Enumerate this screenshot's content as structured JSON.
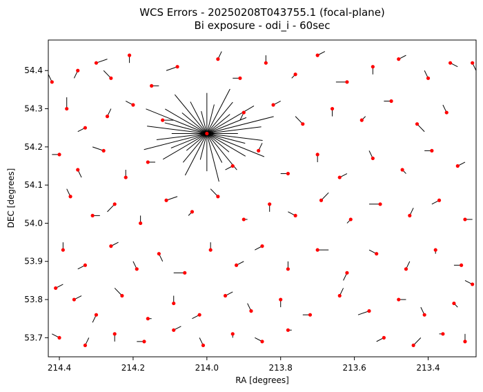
{
  "chart_data": {
    "type": "scatter",
    "title": "WCS Errors - 20250208T043755.1 (focal-plane)",
    "subtitle": "Bi exposure - odi_i - 60sec",
    "xlabel": "RA [degrees]",
    "ylabel": "DEC [degrees]",
    "xlim": [
      214.43,
      213.27
    ],
    "ylim": [
      53.65,
      54.48
    ],
    "x_inverted": true,
    "xticks": [
      "214.4",
      "214.2",
      "214.0",
      "213.8",
      "213.6",
      "213.4"
    ],
    "yticks": [
      "53.7",
      "53.8",
      "53.9",
      "54.0",
      "54.1",
      "54.2",
      "54.3",
      "54.4"
    ],
    "grid": false,
    "colors": {
      "marker": "#ff0000",
      "vector": "#000000"
    },
    "series": [
      {
        "marker": "dot",
        "cluster_center": [
          214.0,
          54.235
        ],
        "points": [
          [
            214.35,
            54.4,
            0.01,
            -0.02
          ],
          [
            214.3,
            54.42,
            -0.03,
            0.01
          ],
          [
            214.26,
            54.38,
            0.02,
            0.02
          ],
          [
            214.21,
            54.44,
            0.0,
            -0.02
          ],
          [
            214.15,
            54.36,
            -0.02,
            0.0
          ],
          [
            214.08,
            54.41,
            0.03,
            -0.01
          ],
          [
            213.97,
            54.43,
            -0.01,
            0.02
          ],
          [
            213.91,
            54.38,
            0.02,
            0.0
          ],
          [
            213.84,
            54.42,
            0.0,
            0.02
          ],
          [
            213.76,
            54.39,
            0.01,
            -0.01
          ],
          [
            213.7,
            54.44,
            -0.02,
            0.01
          ],
          [
            213.62,
            54.37,
            0.03,
            0.0
          ],
          [
            213.55,
            54.41,
            0.0,
            -0.02
          ],
          [
            213.48,
            54.43,
            -0.02,
            0.01
          ],
          [
            213.4,
            54.38,
            0.01,
            0.02
          ],
          [
            213.34,
            54.42,
            -0.02,
            -0.01
          ],
          [
            214.38,
            54.3,
            0.0,
            0.03
          ],
          [
            214.33,
            54.25,
            0.02,
            -0.01
          ],
          [
            214.27,
            54.28,
            -0.01,
            0.02
          ],
          [
            214.2,
            54.31,
            0.02,
            0.01
          ],
          [
            214.12,
            54.27,
            -0.03,
            0.0
          ],
          [
            213.9,
            54.29,
            0.01,
            -0.02
          ],
          [
            213.82,
            54.31,
            -0.02,
            0.01
          ],
          [
            213.74,
            54.26,
            0.02,
            0.02
          ],
          [
            213.66,
            54.3,
            0.0,
            -0.02
          ],
          [
            213.58,
            54.27,
            -0.01,
            0.01
          ],
          [
            213.5,
            54.32,
            0.02,
            0.0
          ],
          [
            213.43,
            54.26,
            -0.02,
            -0.02
          ],
          [
            213.35,
            54.29,
            0.01,
            0.02
          ],
          [
            214.4,
            54.18,
            0.02,
            0.0
          ],
          [
            214.35,
            54.14,
            -0.01,
            -0.02
          ],
          [
            214.28,
            54.19,
            0.03,
            0.01
          ],
          [
            214.22,
            54.12,
            0.0,
            0.02
          ],
          [
            214.16,
            54.16,
            -0.02,
            0.0
          ],
          [
            213.93,
            54.15,
            0.02,
            -0.01
          ],
          [
            213.86,
            54.19,
            -0.01,
            0.02
          ],
          [
            213.78,
            54.13,
            0.02,
            0.0
          ],
          [
            213.7,
            54.18,
            0.0,
            -0.02
          ],
          [
            213.64,
            54.12,
            -0.02,
            0.01
          ],
          [
            213.55,
            54.17,
            0.01,
            0.02
          ],
          [
            213.47,
            54.14,
            -0.01,
            -0.01
          ],
          [
            213.39,
            54.19,
            0.02,
            0.0
          ],
          [
            213.32,
            54.15,
            -0.02,
            0.01
          ],
          [
            214.37,
            54.07,
            0.01,
            0.02
          ],
          [
            214.31,
            54.02,
            -0.02,
            0.0
          ],
          [
            214.25,
            54.05,
            0.02,
            -0.02
          ],
          [
            214.18,
            54.0,
            0.0,
            0.02
          ],
          [
            214.11,
            54.06,
            -0.03,
            0.01
          ],
          [
            214.04,
            54.03,
            0.01,
            -0.01
          ],
          [
            213.97,
            54.07,
            0.02,
            0.02
          ],
          [
            213.9,
            54.01,
            -0.01,
            0.0
          ],
          [
            213.83,
            54.05,
            0.0,
            -0.02
          ],
          [
            213.76,
            54.02,
            0.02,
            0.01
          ],
          [
            213.69,
            54.06,
            -0.02,
            0.02
          ],
          [
            213.61,
            54.01,
            0.01,
            -0.01
          ],
          [
            213.53,
            54.05,
            0.03,
            0.0
          ],
          [
            213.45,
            54.02,
            -0.01,
            0.02
          ],
          [
            213.37,
            54.06,
            0.02,
            -0.01
          ],
          [
            213.3,
            54.01,
            -0.02,
            0.0
          ],
          [
            214.39,
            53.93,
            0.0,
            0.02
          ],
          [
            214.33,
            53.89,
            0.02,
            -0.01
          ],
          [
            214.26,
            53.94,
            -0.02,
            0.01
          ],
          [
            214.19,
            53.88,
            0.01,
            0.02
          ],
          [
            214.13,
            53.92,
            -0.01,
            -0.02
          ],
          [
            214.06,
            53.87,
            0.03,
            0.0
          ],
          [
            213.99,
            53.93,
            0.0,
            0.02
          ],
          [
            213.92,
            53.89,
            -0.02,
            0.01
          ],
          [
            213.85,
            53.94,
            0.02,
            -0.01
          ],
          [
            213.78,
            53.88,
            0.0,
            0.02
          ],
          [
            213.7,
            53.93,
            -0.03,
            0.0
          ],
          [
            213.62,
            53.87,
            0.01,
            -0.02
          ],
          [
            213.54,
            53.92,
            0.02,
            0.01
          ],
          [
            213.46,
            53.88,
            -0.01,
            0.02
          ],
          [
            213.38,
            53.93,
            0.0,
            -0.01
          ],
          [
            213.31,
            53.89,
            0.02,
            0.0
          ],
          [
            214.36,
            53.8,
            -0.02,
            0.01
          ],
          [
            214.3,
            53.76,
            0.01,
            -0.02
          ],
          [
            214.23,
            53.81,
            0.02,
            0.02
          ],
          [
            214.16,
            53.75,
            -0.01,
            0.0
          ],
          [
            214.09,
            53.79,
            0.0,
            0.02
          ],
          [
            214.02,
            53.76,
            0.02,
            -0.01
          ],
          [
            213.95,
            53.81,
            -0.02,
            0.01
          ],
          [
            213.88,
            53.77,
            0.01,
            0.02
          ],
          [
            213.8,
            53.8,
            0.0,
            -0.02
          ],
          [
            213.72,
            53.76,
            0.02,
            0.0
          ],
          [
            213.64,
            53.81,
            -0.01,
            0.02
          ],
          [
            213.56,
            53.77,
            0.03,
            -0.01
          ],
          [
            213.48,
            53.8,
            -0.02,
            0.0
          ],
          [
            213.41,
            53.76,
            0.01,
            0.02
          ],
          [
            213.33,
            53.79,
            -0.01,
            -0.01
          ],
          [
            214.4,
            53.7,
            0.02,
            0.01
          ],
          [
            214.33,
            53.68,
            -0.01,
            0.02
          ],
          [
            214.25,
            53.71,
            0.0,
            -0.02
          ],
          [
            214.17,
            53.69,
            0.02,
            0.0
          ],
          [
            214.09,
            53.72,
            -0.02,
            0.01
          ],
          [
            214.01,
            53.68,
            0.01,
            0.02
          ],
          [
            213.93,
            53.71,
            0.0,
            -0.01
          ],
          [
            213.85,
            53.69,
            0.02,
            0.01
          ],
          [
            213.78,
            53.72,
            -0.01,
            0.0
          ],
          [
            213.52,
            53.7,
            0.02,
            -0.01
          ],
          [
            213.44,
            53.68,
            -0.02,
            0.02
          ],
          [
            213.36,
            53.71,
            0.01,
            0.0
          ],
          [
            213.3,
            53.69,
            0.0,
            0.02
          ],
          [
            214.42,
            54.37,
            0.02,
            0.02
          ],
          [
            214.41,
            53.83,
            -0.02,
            0.01
          ],
          [
            213.28,
            54.42,
            -0.01,
            -0.02
          ],
          [
            213.28,
            53.84,
            0.02,
            0.01
          ]
        ]
      }
    ]
  }
}
